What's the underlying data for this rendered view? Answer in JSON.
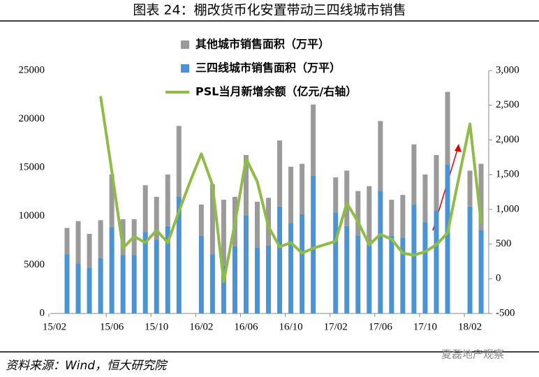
{
  "chart_data": {
    "type": "bar",
    "title": "图表 24：棚改货币化安置带动三四线城市销售",
    "source": "资料来源：Wind，恒大研究院",
    "watermark": "夏磊地产观察",
    "categories": [
      "15/02",
      null,
      null,
      null,
      "15/06",
      null,
      null,
      null,
      "15/10",
      null,
      null,
      null,
      "16/02",
      null,
      null,
      null,
      "16/06",
      null,
      null,
      null,
      "16/10",
      null,
      null,
      null,
      "17/02",
      null,
      null,
      null,
      "17/06",
      null,
      null,
      null,
      "17/10",
      null,
      null,
      null,
      "18/02",
      null
    ],
    "stacked": true,
    "series": [
      {
        "name": "三四线城市销售面积（万平）",
        "color": "#4a94d6",
        "values": [
          6100,
          5100,
          4700,
          5700,
          8900,
          6000,
          6000,
          8400,
          7600,
          9000,
          12000,
          null,
          8000,
          6100,
          4900,
          6900,
          10100,
          6800,
          7000,
          11000,
          9300,
          10200,
          14200,
          null,
          10400,
          9000,
          8000,
          7000,
          12600,
          8000,
          7800,
          11200,
          9400,
          10600,
          15300,
          null,
          11000,
          8600
        ]
      },
      {
        "name": "其他城市销售面积（万平）",
        "color": "#9a9a9a",
        "values": [
          2700,
          4400,
          3500,
          3900,
          5400,
          3700,
          3700,
          4800,
          4400,
          5300,
          7300,
          null,
          3200,
          7200,
          6800,
          5100,
          6200,
          4700,
          4900,
          6800,
          5800,
          5200,
          7300,
          null,
          3600,
          5700,
          4600,
          6100,
          7200,
          3700,
          4400,
          6200,
          4900,
          5700,
          7500,
          null,
          3700,
          6800
        ]
      },
      {
        "name": "PSL当月新增余额（亿元/右轴）",
        "color": "#8fbc45",
        "type": "line",
        "axis": "y2",
        "values": [
          null,
          null,
          null,
          2630,
          1550,
          440,
          610,
          520,
          700,
          520,
          970,
          1400,
          1800,
          1350,
          -40,
          800,
          1730,
          1400,
          750,
          460,
          520,
          370,
          440,
          490,
          540,
          1090,
          820,
          490,
          640,
          570,
          370,
          340,
          390,
          490,
          660,
          1450,
          2230,
          800
        ]
      }
    ],
    "legend_order": [
      1,
      0,
      2
    ],
    "ylim": [
      0,
      25000
    ],
    "yticks": [
      0,
      5000,
      10000,
      15000,
      20000,
      25000
    ],
    "y2lim": [
      -500,
      3000
    ],
    "y2ticks": [
      -500,
      0,
      500,
      {
        "value": 1000,
        "label": "1,000"
      },
      {
        "value": 1500,
        "label": "1,500"
      },
      {
        "value": 2000,
        "label": "2,000"
      },
      {
        "value": 2500,
        "label": "2,500"
      },
      {
        "value": 3000,
        "label": "3,000"
      }
    ]
  }
}
